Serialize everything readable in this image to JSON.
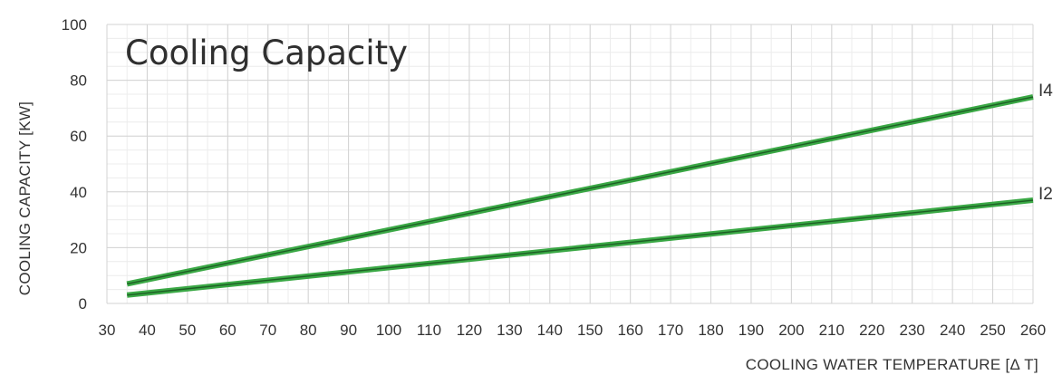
{
  "chart_data": {
    "type": "line",
    "title": "Cooling Capacity",
    "xlabel": "COOLING WATER TEMPERATURE [Δ T]",
    "ylabel": "COOLING CAPACITY [KW]",
    "xlim": [
      30,
      260
    ],
    "ylim": [
      0,
      100
    ],
    "x_ticks": [
      30,
      40,
      50,
      60,
      70,
      80,
      90,
      100,
      110,
      120,
      130,
      140,
      150,
      160,
      170,
      180,
      190,
      200,
      210,
      220,
      230,
      240,
      250,
      260
    ],
    "y_ticks": [
      0,
      20,
      40,
      60,
      80,
      100
    ],
    "x_minor_step": 5,
    "y_minor_step": 5,
    "grid": true,
    "series": [
      {
        "name": "I4",
        "x": [
          35,
          260
        ],
        "y": [
          7,
          74
        ]
      },
      {
        "name": "I2",
        "x": [
          35,
          260
        ],
        "y": [
          3,
          37
        ]
      }
    ],
    "series_color": "#3aa845",
    "series_inner_color": "#1d5e24"
  }
}
